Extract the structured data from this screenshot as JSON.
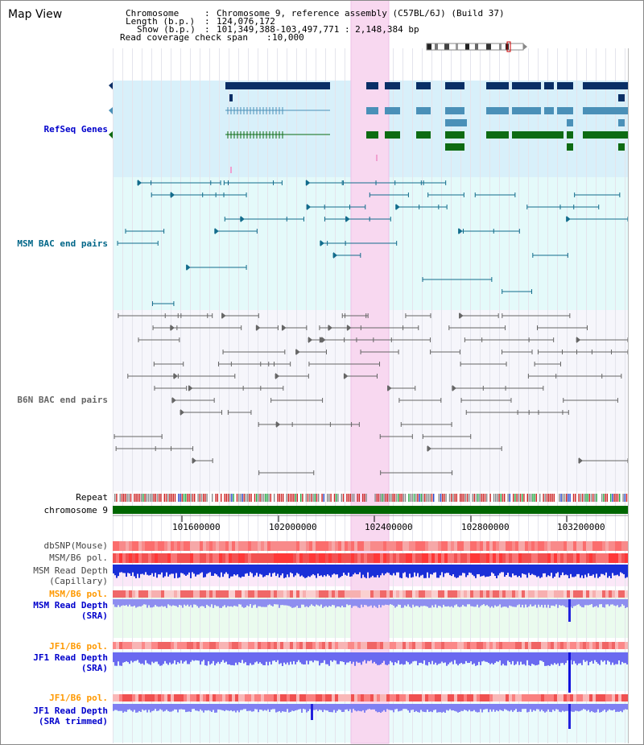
{
  "view_title": "Map View",
  "header": {
    "chromosome_label": "Chromosome",
    "chromosome_value": "Chromosome 9, reference assembly (C57BL/6J) (Build 37)",
    "length_label": "Length (b.p.)",
    "length_value": "124,076,172",
    "show_label": "Show (b.p.)",
    "show_value": "101,349,388-103,497,771 : 2,148,384 bp",
    "span_label": "Read coverage check span",
    "span_value": "10,000"
  },
  "tracks": {
    "refseq": "RefSeq Genes",
    "msm_bac": "MSM BAC end pairs",
    "b6n_bac": "B6N BAC end pairs",
    "repeat": "Repeat",
    "chromosome": "chromosome 9",
    "dbsnp": "dbSNP(Mouse)",
    "msm_b6_pol_1": "MSM/B6 pol.",
    "msm_depth_cap_1": "MSM Read Depth",
    "msm_depth_cap_2": "(Capillary)",
    "msm_b6_pol_2": "MSM/B6 pol.",
    "msm_depth_sra_1": "MSM Read Depth",
    "msm_depth_sra_2": "(SRA)",
    "jf1_b6_pol_1": "JF1/B6 pol.",
    "jf1_depth_sra_1": "JF1 Read Depth",
    "jf1_depth_sra_2": "(SRA)",
    "jf1_b6_pol_2": "JF1/B6 pol.",
    "jf1_depth_trim_1": "JF1 Read Depth",
    "jf1_depth_trim_2": "(SRA trimmed)"
  },
  "axis": {
    "ticks": [
      "101600000",
      "102000000",
      "102400000",
      "102800000",
      "103200000"
    ]
  },
  "colors": {
    "refseq_label": "#0000cc",
    "msm_label": "#006688",
    "b6n_label": "#666666",
    "orange_label": "#ff9900",
    "blue_label": "#0000cc",
    "highlight": "#f8d8f0",
    "chromosome_bar": "#006600"
  }
}
